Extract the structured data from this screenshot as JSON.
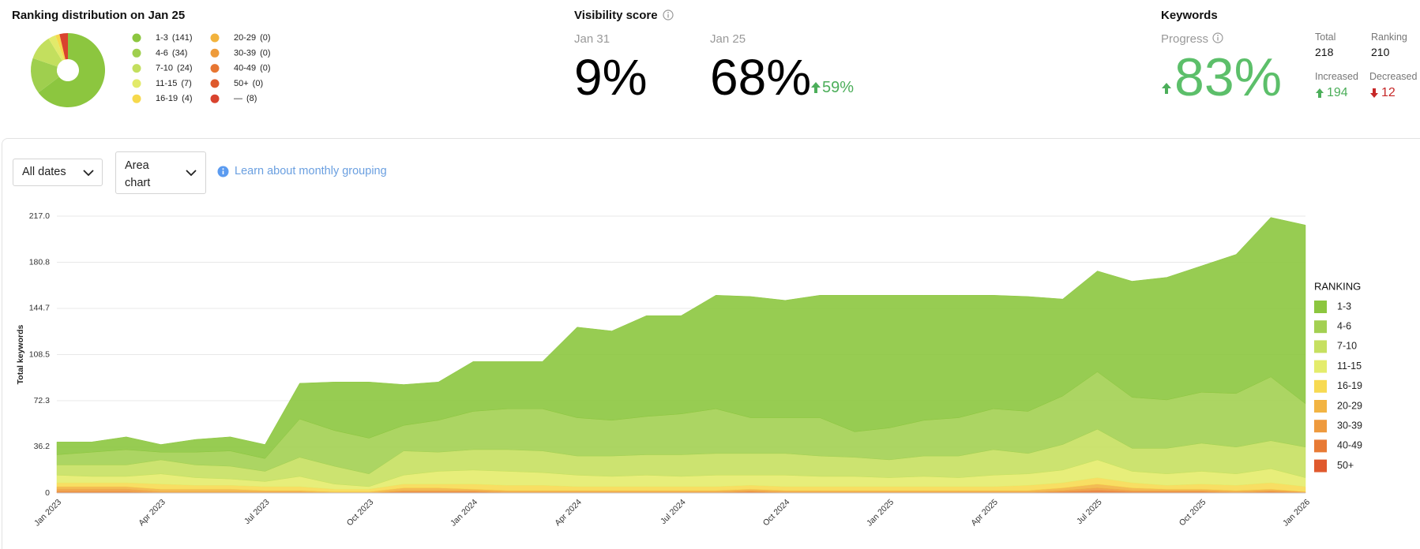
{
  "visibility": {
    "title": "Visibility score",
    "current_label": "Jan 31",
    "current": "9%",
    "previous_label": "Jan 25",
    "previous": "68%",
    "change": "59%"
  },
  "keywords": {
    "title": "Keywords",
    "progress_label": "Progress",
    "progress": "83%",
    "total_label": "Total",
    "total": "218",
    "ranking_label": "Ranking",
    "ranking": "210",
    "increased_label": "Increased",
    "increased": "194",
    "decreased_label": "Decreased",
    "decreased": "12"
  },
  "controls": {
    "date_filter": "All dates",
    "chart_type": "Area chart",
    "help_link": "Learn about monthly grouping"
  },
  "chart_data": [
    {
      "type": "pie",
      "title": "Ranking distribution on Jan 25",
      "categories": [
        "1-3",
        "4-6",
        "7-10",
        "11-15",
        "16-19",
        "20-29",
        "30-39",
        "40-49",
        "50+",
        "—"
      ],
      "values": [
        141,
        34,
        24,
        7,
        4,
        0,
        0,
        0,
        0,
        8
      ],
      "value_labels": [
        "(141)",
        "(34)",
        "(24)",
        "(7)",
        "(4)",
        "(0)",
        "(0)",
        "(0)",
        "(0)",
        "(8)"
      ],
      "colors": [
        "#8cc63f",
        "#9fcf4e",
        "#c3df5e",
        "#e2ea6a",
        "#f6d94c",
        "#f2b33d",
        "#ee9b3a",
        "#e77632",
        "#de5a2c",
        "#d9432e"
      ]
    },
    {
      "type": "area",
      "stacked": true,
      "ylabel": "Total keywords",
      "legend_title": "RANKING",
      "legend": "right",
      "grid": true,
      "categories": [
        "Jan 2023",
        null,
        null,
        "Apr 2023",
        null,
        null,
        "Jul 2023",
        null,
        null,
        "Oct 2023",
        null,
        null,
        "Jan 2024",
        null,
        null,
        "Apr 2024",
        null,
        null,
        "Jul 2024",
        null,
        null,
        "Oct 2024",
        null,
        null,
        "Jan 2025",
        null,
        null,
        "Apr 2025",
        null,
        null,
        "Jul 2025",
        null,
        null,
        "Oct 2025",
        null,
        null,
        "Jan 2026"
      ],
      "ylim": [
        0,
        217
      ],
      "yticks": [
        0,
        36.2,
        72.3,
        108.5,
        144.7,
        180.8,
        {
          "value": 217,
          "label": "217.0"
        }
      ],
      "series": [
        {
          "name": "1-3",
          "color": "#8cc63f",
          "values": [
            10,
            8,
            10,
            6,
            10,
            11,
            11,
            28,
            38,
            44,
            32,
            30,
            39,
            37,
            37,
            71,
            70,
            79,
            77,
            89,
            95,
            92,
            96,
            107,
            104,
            98,
            96,
            89,
            90,
            76,
            79,
            91,
            96,
            99,
            109,
            125,
            140
          ]
        },
        {
          "name": "4-6",
          "color": "#a3d052",
          "values": [
            8,
            10,
            12,
            6,
            10,
            12,
            10,
            30,
            28,
            28,
            20,
            25,
            30,
            32,
            33,
            30,
            28,
            30,
            32,
            35,
            28,
            28,
            30,
            20,
            25,
            28,
            30,
            32,
            33,
            38,
            45,
            40,
            38,
            40,
            42,
            50,
            34
          ]
        },
        {
          "name": "7-10",
          "color": "#c6e060",
          "values": [
            8,
            9,
            9,
            11,
            10,
            10,
            8,
            15,
            14,
            10,
            19,
            15,
            16,
            17,
            17,
            15,
            16,
            16,
            17,
            17,
            17,
            17,
            16,
            15,
            14,
            16,
            17,
            20,
            16,
            20,
            24,
            18,
            20,
            22,
            21,
            22,
            24
          ]
        },
        {
          "name": "11-15",
          "color": "#e4ec6c",
          "values": [
            6,
            5,
            5,
            8,
            6,
            5,
            4,
            8,
            4,
            2,
            7,
            10,
            11,
            11,
            10,
            9,
            8,
            9,
            8,
            9,
            8,
            9,
            8,
            8,
            7,
            8,
            7,
            9,
            9,
            10,
            14,
            9,
            9,
            10,
            9,
            11,
            7
          ]
        },
        {
          "name": "16-19",
          "color": "#f7da52",
          "values": [
            3,
            3,
            3,
            4,
            3,
            3,
            3,
            3,
            2,
            2,
            3,
            3,
            4,
            4,
            4,
            3,
            3,
            3,
            3,
            3,
            3,
            3,
            3,
            3,
            3,
            3,
            3,
            3,
            4,
            4,
            5,
            4,
            3,
            4,
            4,
            5,
            4
          ]
        },
        {
          "name": "20-29",
          "color": "#f2b443",
          "values": [
            2,
            2,
            2,
            2,
            2,
            2,
            1,
            1,
            1,
            1,
            2,
            2,
            1,
            1,
            1,
            1,
            1,
            1,
            1,
            1,
            1,
            1,
            1,
            1,
            1,
            1,
            1,
            1,
            1,
            2,
            3,
            2,
            1,
            1,
            1,
            1,
            0
          ]
        },
        {
          "name": "30-39",
          "color": "#ee9a3e",
          "values": [
            2,
            2,
            2,
            1,
            1,
            1,
            1,
            1,
            0,
            0,
            1,
            1,
            1,
            1,
            1,
            1,
            1,
            1,
            1,
            1,
            1,
            1,
            1,
            1,
            1,
            1,
            1,
            1,
            1,
            1,
            2,
            1,
            1,
            1,
            1,
            1,
            1
          ]
        },
        {
          "name": "40-49",
          "color": "#e87a35",
          "values": [
            1,
            1,
            1,
            0,
            0,
            0,
            0,
            0,
            0,
            0,
            1,
            1,
            1,
            0,
            0,
            0,
            0,
            0,
            0,
            0,
            1,
            0,
            0,
            0,
            0,
            0,
            0,
            0,
            0,
            1,
            2,
            1,
            1,
            1,
            0,
            1,
            0
          ]
        },
        {
          "name": "50+",
          "color": "#e0592d",
          "values": [
            0,
            0,
            0,
            0,
            0,
            0,
            0,
            0,
            0,
            0,
            0,
            0,
            0,
            0,
            0,
            0,
            0,
            0,
            0,
            0,
            0,
            0,
            0,
            0,
            0,
            0,
            0,
            0,
            0,
            0,
            0,
            0,
            0,
            0,
            0,
            0,
            0
          ]
        }
      ]
    }
  ]
}
